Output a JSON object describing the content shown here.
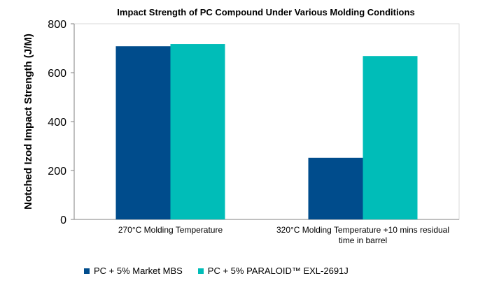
{
  "chart_data": {
    "type": "bar",
    "title": "Impact Strength of PC Compound Under Various Molding Conditions",
    "xlabel": "",
    "ylabel": "Notched Izod Impact Strength (J/M)",
    "ylim": [
      0,
      800
    ],
    "yticks": [
      0,
      200,
      400,
      600,
      800
    ],
    "grid": false,
    "legend_position": "bottom",
    "categories": [
      [
        "270°C Molding Temperature"
      ],
      [
        "320°C Molding Temperature +10 mins residual",
        "time in barrel"
      ]
    ],
    "series": [
      {
        "name": "PC + 5% Market MBS",
        "color": "#004C8C",
        "values": [
          708,
          252
        ]
      },
      {
        "name": "PC + 5% PARALOID™ EXL-2691J",
        "color": "#00BDB8",
        "values": [
          717,
          668
        ]
      }
    ]
  }
}
